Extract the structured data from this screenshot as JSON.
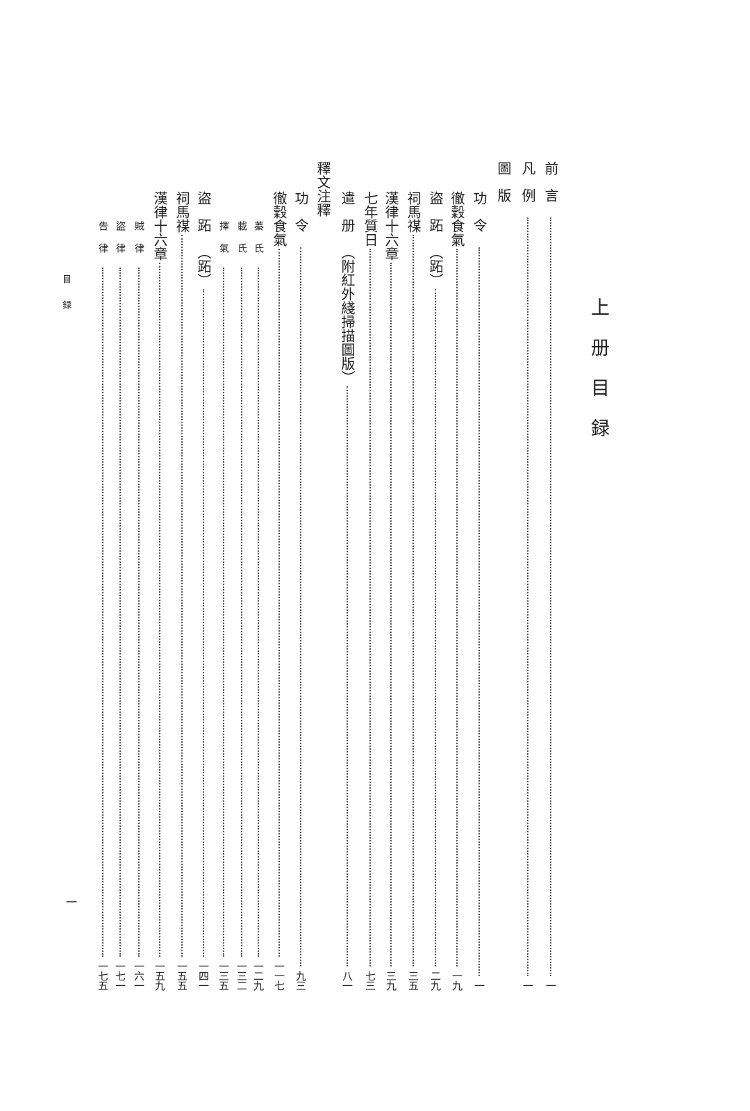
{
  "title": "上册目録",
  "running_head": "目録",
  "folio": "一",
  "entries": [
    {
      "title": "前言",
      "page": "一",
      "level": 1
    },
    {
      "title": "凡例",
      "page": "一",
      "level": 1
    },
    {
      "title": "圖版",
      "page": "",
      "level": 1
    },
    {
      "title": "功令",
      "page": "一",
      "level": 2
    },
    {
      "title": "徹穀食氣",
      "page": "一九",
      "level": 2
    },
    {
      "title": "盜跖",
      "note": "（跖）",
      "page": "二九",
      "level": 2
    },
    {
      "title": "祠馬禖",
      "page": "三五",
      "level": 2
    },
    {
      "title": "漢律十六章",
      "page": "三九",
      "level": 2
    },
    {
      "title": "七年質日",
      "page": "七三",
      "level": 2
    },
    {
      "title": "遣册",
      "note": "（附紅外綫掃描圖版）",
      "page": "八一",
      "level": 2
    },
    {
      "title": "釋文注釋",
      "page": "",
      "level": 1
    },
    {
      "title": "功令",
      "page": "九三",
      "level": 2
    },
    {
      "title": "徹穀食氣",
      "page": "一一七",
      "level": 2
    },
    {
      "title": "蓁氏",
      "page": "一二九",
      "level": 3
    },
    {
      "title": "載氏",
      "page": "一三二",
      "level": 3
    },
    {
      "title": "擇氣",
      "page": "一三五",
      "level": 3
    },
    {
      "title": "盜跖",
      "note": "（跖）",
      "page": "一四一",
      "level": 2
    },
    {
      "title": "祠馬禖",
      "page": "一五五",
      "level": 2
    },
    {
      "title": "漢律十六章",
      "page": "一五九",
      "level": 2
    },
    {
      "title": "賊律",
      "page": "一六一",
      "level": 3
    },
    {
      "title": "盜律",
      "page": "一七一",
      "level": 3
    },
    {
      "title": "告律",
      "page": "一七五",
      "level": 3
    }
  ]
}
